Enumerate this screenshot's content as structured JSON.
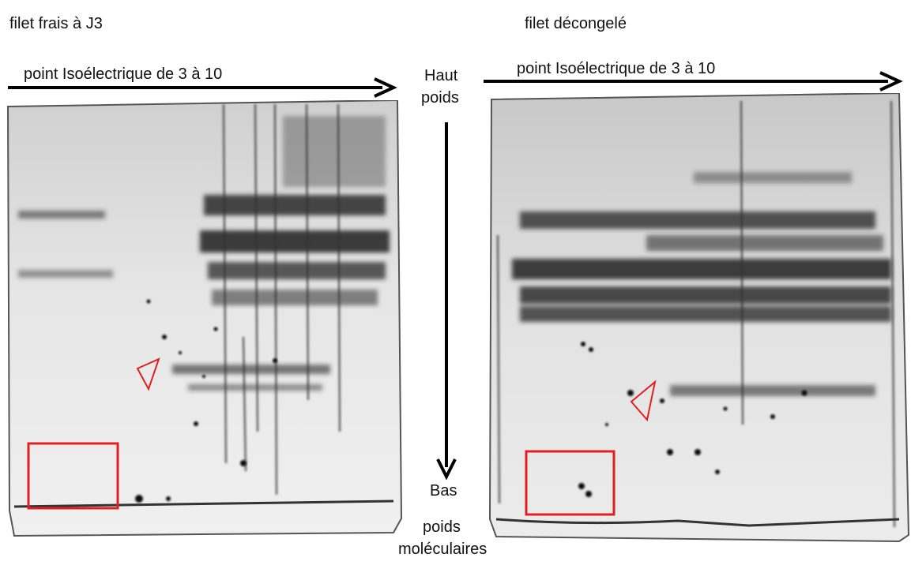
{
  "left_panel": {
    "title": "filet frais à J3",
    "axis_label": "point Isoélectrique de 3 à 10"
  },
  "right_panel": {
    "title": "filet décongelé",
    "axis_label": "point Isoélectrique de 3 à 10"
  },
  "vertical_axis": {
    "top_label_line1": "Haut",
    "top_label_line2": "poids",
    "bottom_label_line1": "Bas",
    "bottom_label_line2": "poids",
    "bottom_label_line3": "moléculaires"
  },
  "colors": {
    "highlight": "#e02020",
    "arrow": "#000000"
  }
}
